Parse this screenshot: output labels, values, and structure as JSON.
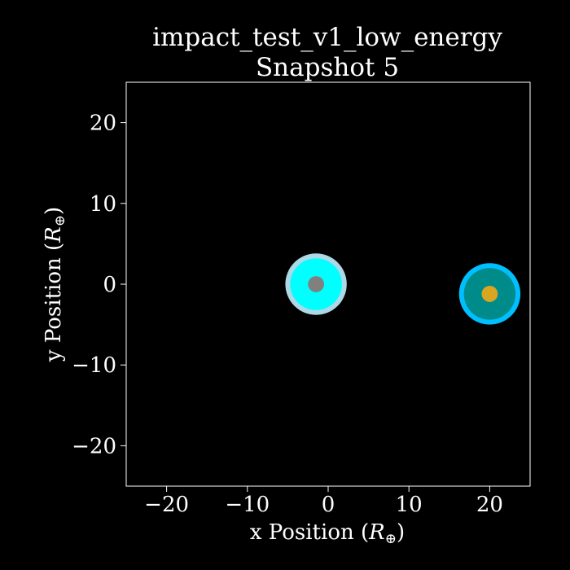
{
  "chart_data": {
    "type": "scatter",
    "title": "impact_test_v1_low_energy",
    "subtitle": "Snapshot 5",
    "xlabel": "x Position (R⊕)",
    "ylabel": "y Position (R⊕)",
    "xlabel_text": "x Position (",
    "xlabel_symbol": "R",
    "xlabel_sub": "⊕",
    "xlabel_close": ")",
    "ylabel_text": "y Position (",
    "ylabel_symbol": "R",
    "ylabel_sub": "⊕",
    "ylabel_close": ")",
    "xlim": [
      -25,
      25
    ],
    "ylim": [
      -25,
      25
    ],
    "xticks": [
      -20,
      -10,
      0,
      10,
      20
    ],
    "xtick_labels": [
      "−20",
      "−10",
      "0",
      "10",
      "20"
    ],
    "yticks": [
      -20,
      -10,
      0,
      10,
      20
    ],
    "ytick_labels": [
      "−20",
      "−10",
      "0",
      "10",
      "20"
    ],
    "grid": false,
    "background": "#000000",
    "axes_color": "#ffffff",
    "bodies": [
      {
        "center": [
          -1.5,
          0.0
        ],
        "layers": [
          {
            "radius": 3.8,
            "color": "#add8e6"
          },
          {
            "radius": 3.2,
            "color": "#00ffff"
          },
          {
            "radius": 1.0,
            "color": "#808080"
          }
        ]
      },
      {
        "center": [
          20.0,
          -1.2
        ],
        "layers": [
          {
            "radius": 3.8,
            "color": "#00bfff"
          },
          {
            "radius": 3.2,
            "color": "#008b8b"
          },
          {
            "radius": 1.0,
            "color": "#daa520"
          }
        ]
      }
    ]
  }
}
